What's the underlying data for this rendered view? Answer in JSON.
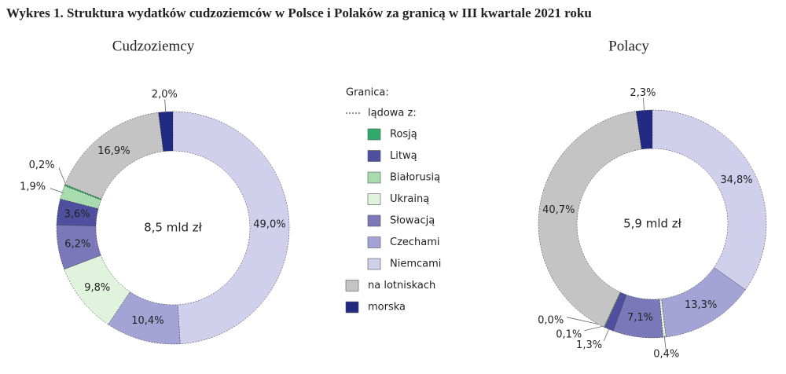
{
  "title": "Wykres 1. Struktura wydatków cudzoziemców w Polsce i Polaków za granicą w III kwartale 2021 roku",
  "legend": {
    "title": "Granica:",
    "group_label": "lądowa z:",
    "group_items": [
      {
        "name": "Rosją",
        "color": "#2eaa6a"
      },
      {
        "name": "Litwą",
        "color": "#4f4fa0"
      },
      {
        "name": "Białorusią",
        "color": "#a8dcae"
      },
      {
        "name": "Ukrainą",
        "color": "#e0f3dd"
      },
      {
        "name": "Słowacją",
        "color": "#7a78b8"
      },
      {
        "name": "Czechami",
        "color": "#a3a3d6"
      },
      {
        "name": "Niemcami",
        "color": "#d0d0ec"
      }
    ],
    "items": [
      {
        "name": "na lotniskach",
        "color": "#c4c4c4"
      },
      {
        "name": "morska",
        "color": "#1f2a80"
      }
    ]
  },
  "chart_data": [
    {
      "type": "pie",
      "title": "Cudzoziemcy",
      "center_label": "8,5 mld zł",
      "categories": [
        "morska",
        "Niemcami",
        "Czechami",
        "Ukrainą",
        "Słowacją",
        "Litwą",
        "Białorusią",
        "Rosją",
        "na lotniskach"
      ],
      "values": [
        2.0,
        49.0,
        10.4,
        9.8,
        6.2,
        3.6,
        1.9,
        0.2,
        16.9
      ],
      "value_labels": [
        "2,0%",
        "49,0%",
        "10,4%",
        "9,8%",
        "6,2%",
        "3,6%",
        "1,9%",
        "0,2%",
        "16,9%"
      ],
      "colors": [
        "#1f2a80",
        "#d0d0ec",
        "#a3a3d6",
        "#e0f3dd",
        "#7a78b8",
        "#4f4fa0",
        "#a8dcae",
        "#2eaa6a",
        "#c4c4c4"
      ]
    },
    {
      "type": "pie",
      "title": "Polacy",
      "center_label": "5,9 mld zł",
      "categories": [
        "morska",
        "Niemcami",
        "Czechami",
        "Ukrainą",
        "Słowacją",
        "Litwą",
        "Białorusią",
        "Rosją",
        "na lotniskach"
      ],
      "values": [
        2.3,
        34.8,
        13.3,
        0.4,
        7.1,
        1.3,
        0.1,
        0.0,
        40.7
      ],
      "value_labels": [
        "2,3%",
        "34,8%",
        "13,3%",
        "0,4%",
        "7,1%",
        "1,3%",
        "0,1%",
        "0,0%",
        "40,7%"
      ],
      "colors": [
        "#1f2a80",
        "#d0d0ec",
        "#a3a3d6",
        "#e0f3dd",
        "#7a78b8",
        "#4f4fa0",
        "#a8dcae",
        "#2eaa6a",
        "#c4c4c4"
      ]
    }
  ]
}
